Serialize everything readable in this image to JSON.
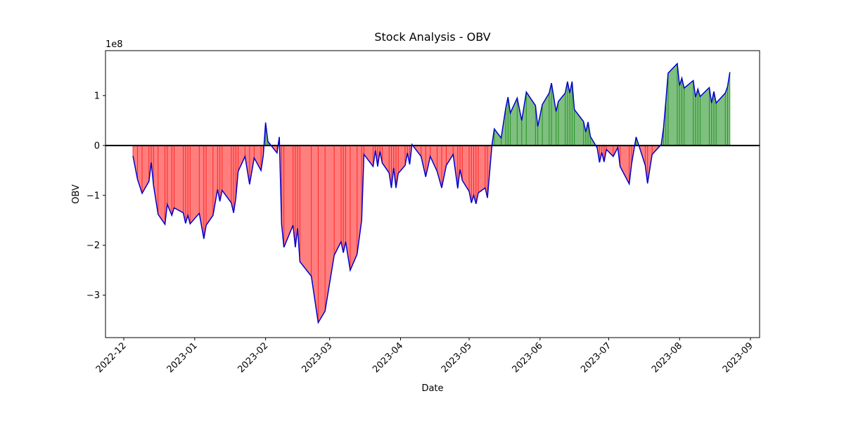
{
  "chart_data": {
    "type": "area",
    "title": "Stock Analysis - OBV",
    "x_label": "Date",
    "y_label": "OBV",
    "y_offset_label": "1e8",
    "line_color": "#0000cc",
    "positive_color": "green",
    "negative_color": "red",
    "zero_line_color": "#000000",
    "xlim": [
      "2022-11-23",
      "2023-09-05"
    ],
    "xticks": [
      {
        "value": "2022-12-01",
        "label": "2022-12"
      },
      {
        "value": "2023-01-01",
        "label": "2023-01"
      },
      {
        "value": "2023-02-01",
        "label": "2023-02"
      },
      {
        "value": "2023-03-01",
        "label": "2023-03"
      },
      {
        "value": "2023-04-01",
        "label": "2023-04"
      },
      {
        "value": "2023-05-01",
        "label": "2023-05"
      },
      {
        "value": "2023-06-01",
        "label": "2023-06"
      },
      {
        "value": "2023-07-01",
        "label": "2023-07"
      },
      {
        "value": "2023-08-01",
        "label": "2023-08"
      },
      {
        "value": "2023-09-01",
        "label": "2023-09"
      }
    ],
    "ylim": [
      -3.85,
      1.9
    ],
    "yticks": [
      {
        "value": -3,
        "label": "−3"
      },
      {
        "value": -2,
        "label": "−2"
      },
      {
        "value": -1,
        "label": "−1"
      },
      0,
      1
    ],
    "x": [
      "2022-12-05",
      "2022-12-07",
      "2022-12-09",
      "2022-12-12",
      "2022-12-13",
      "2022-12-14",
      "2022-12-16",
      "2022-12-19",
      "2022-12-20",
      "2022-12-22",
      "2022-12-23",
      "2022-12-27",
      "2022-12-28",
      "2022-12-29",
      "2022-12-30",
      "2023-01-03",
      "2023-01-05",
      "2023-01-06",
      "2023-01-09",
      "2023-01-11",
      "2023-01-12",
      "2023-01-13",
      "2023-01-17",
      "2023-01-18",
      "2023-01-19",
      "2023-01-20",
      "2023-01-23",
      "2023-01-25",
      "2023-01-27",
      "2023-01-30",
      "2023-01-31",
      "2023-02-01",
      "2023-02-02",
      "2023-02-06",
      "2023-02-07",
      "2023-02-08",
      "2023-02-09",
      "2023-02-13",
      "2023-02-14",
      "2023-02-15",
      "2023-02-16",
      "2023-02-21",
      "2023-02-24",
      "2023-02-27",
      "2023-03-03",
      "2023-03-06",
      "2023-03-07",
      "2023-03-08",
      "2023-03-10",
      "2023-03-13",
      "2023-03-15",
      "2023-03-16",
      "2023-03-20",
      "2023-03-21",
      "2023-03-22",
      "2023-03-23",
      "2023-03-24",
      "2023-03-27",
      "2023-03-28",
      "2023-03-29",
      "2023-03-30",
      "2023-03-31",
      "2023-04-03",
      "2023-04-04",
      "2023-04-05",
      "2023-04-06",
      "2023-04-10",
      "2023-04-12",
      "2023-04-14",
      "2023-04-17",
      "2023-04-19",
      "2023-04-21",
      "2023-04-24",
      "2023-04-26",
      "2023-04-27",
      "2023-04-28",
      "2023-05-01",
      "2023-05-02",
      "2023-05-03",
      "2023-05-04",
      "2023-05-05",
      "2023-05-08",
      "2023-05-09",
      "2023-05-11",
      "2023-05-12",
      "2023-05-15",
      "2023-05-17",
      "2023-05-18",
      "2023-05-19",
      "2023-05-22",
      "2023-05-24",
      "2023-05-26",
      "2023-05-30",
      "2023-05-31",
      "2023-06-02",
      "2023-06-05",
      "2023-06-06",
      "2023-06-08",
      "2023-06-09",
      "2023-06-12",
      "2023-06-13",
      "2023-06-14",
      "2023-06-15",
      "2023-06-16",
      "2023-06-20",
      "2023-06-21",
      "2023-06-22",
      "2023-06-23",
      "2023-06-26",
      "2023-06-27",
      "2023-06-28",
      "2023-06-29",
      "2023-06-30",
      "2023-07-03",
      "2023-07-05",
      "2023-07-06",
      "2023-07-10",
      "2023-07-11",
      "2023-07-13",
      "2023-07-14",
      "2023-07-17",
      "2023-07-18",
      "2023-07-20",
      "2023-07-24",
      "2023-07-25",
      "2023-07-26",
      "2023-07-27",
      "2023-07-31",
      "2023-08-01",
      "2023-08-02",
      "2023-08-03",
      "2023-08-07",
      "2023-08-08",
      "2023-08-09",
      "2023-08-10",
      "2023-08-14",
      "2023-08-15",
      "2023-08-16",
      "2023-08-17",
      "2023-08-21",
      "2023-08-22",
      "2023-08-23"
    ],
    "values": [
      -0.21,
      -0.68,
      -0.96,
      -0.72,
      -0.34,
      -0.8,
      -1.38,
      -1.58,
      -1.18,
      -1.4,
      -1.25,
      -1.35,
      -1.56,
      -1.4,
      -1.57,
      -1.36,
      -1.87,
      -1.6,
      -1.4,
      -0.88,
      -1.12,
      -0.9,
      -1.15,
      -1.35,
      -1.05,
      -0.52,
      -0.22,
      -0.78,
      -0.25,
      -0.5,
      -0.2,
      0.46,
      0.08,
      -0.15,
      0.17,
      -1.58,
      -2.04,
      -1.6,
      -2.04,
      -1.66,
      -2.33,
      -2.62,
      -3.55,
      -3.32,
      -2.2,
      -1.93,
      -2.15,
      -1.93,
      -2.5,
      -2.18,
      -1.5,
      -0.18,
      -0.42,
      -0.1,
      -0.42,
      -0.12,
      -0.35,
      -0.55,
      -0.85,
      -0.45,
      -0.85,
      -0.56,
      -0.4,
      -0.15,
      -0.38,
      0.02,
      -0.22,
      -0.63,
      -0.22,
      -0.52,
      -0.85,
      -0.4,
      -0.18,
      -0.86,
      -0.48,
      -0.7,
      -0.92,
      -1.15,
      -1.0,
      -1.17,
      -0.95,
      -0.85,
      -1.05,
      0.02,
      0.33,
      0.15,
      0.75,
      0.97,
      0.65,
      0.95,
      0.5,
      1.07,
      0.8,
      0.38,
      0.82,
      1.05,
      1.25,
      0.68,
      0.88,
      1.05,
      1.28,
      1.05,
      1.28,
      0.72,
      0.48,
      0.27,
      0.47,
      0.18,
      -0.05,
      -0.34,
      -0.14,
      -0.33,
      -0.08,
      -0.22,
      -0.04,
      -0.42,
      -0.77,
      -0.38,
      0.17,
      0.03,
      -0.4,
      -0.76,
      -0.18,
      0.02,
      0.35,
      0.88,
      1.45,
      1.64,
      1.2,
      1.35,
      1.15,
      1.3,
      0.97,
      1.13,
      0.98,
      1.16,
      0.85,
      1.08,
      0.85,
      1.05,
      1.18,
      1.47
    ]
  }
}
